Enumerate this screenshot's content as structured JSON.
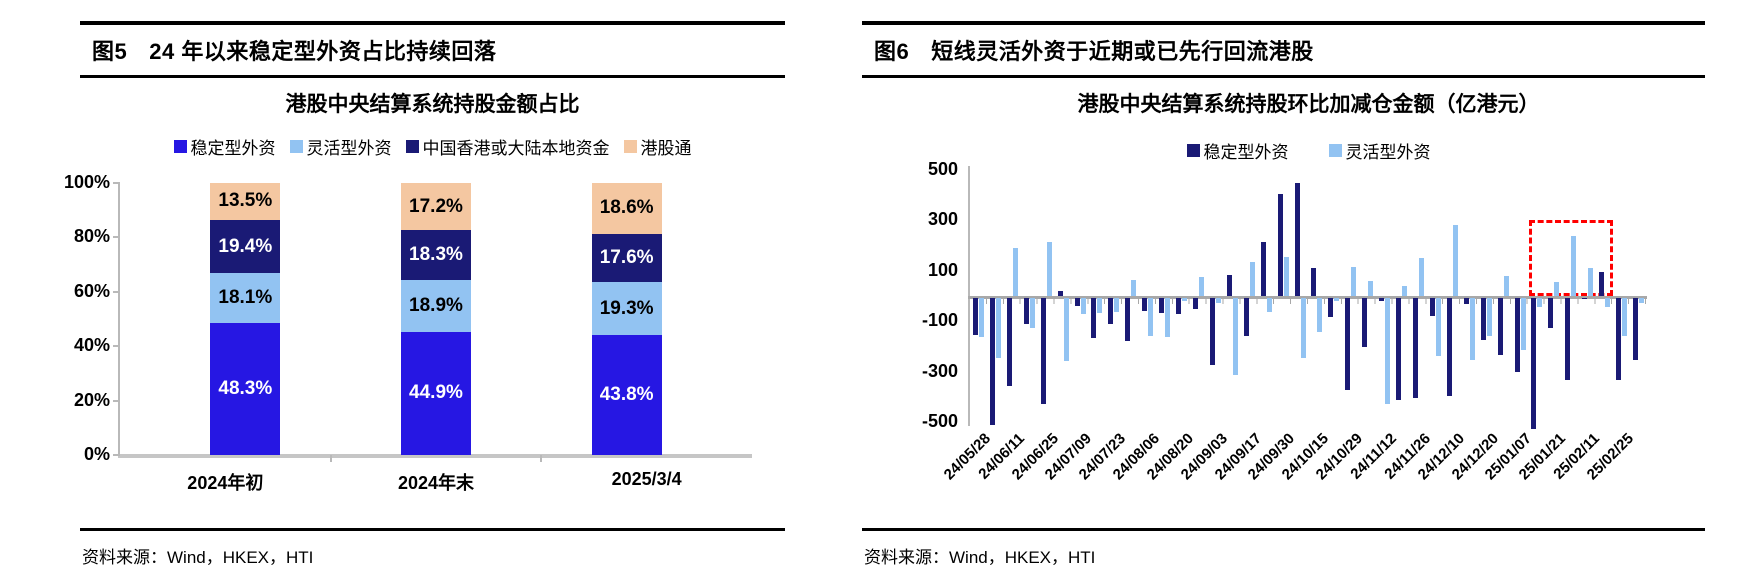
{
  "figure5": {
    "tag": "图5",
    "header_title": "24 年以来稳定型外资占比持续回落",
    "source": "资料来源：Wind，HKEX，HTI",
    "chart_data": {
      "type": "stacked-bar",
      "title": "港股中央结算系统持股金额占比",
      "categories": [
        "2024年初",
        "2024年末",
        "2025/3/4"
      ],
      "y_ticks": [
        "100%",
        "80%",
        "60%",
        "40%",
        "20%",
        "0%"
      ],
      "ylim": [
        0,
        100
      ],
      "unit": "%",
      "legend_position": "top",
      "grid": false,
      "series": [
        {
          "name": "稳定型外资",
          "color": "#2617e3",
          "label_color": "#ffffff",
          "values": [
            48.3,
            44.9,
            43.8
          ]
        },
        {
          "name": "灵活型外资",
          "color": "#92c3f2",
          "label_color": "#000000",
          "values": [
            18.1,
            18.9,
            19.3
          ]
        },
        {
          "name": "中国香港或大陆本地资金",
          "color": "#1a1a75",
          "label_color": "#ffffff",
          "values": [
            19.4,
            18.3,
            17.6
          ]
        },
        {
          "name": "港股通",
          "color": "#f4c7a1",
          "label_color": "#000000",
          "values": [
            13.5,
            17.2,
            18.6
          ]
        }
      ],
      "data_labels": [
        [
          "48.3%",
          "44.9%",
          "43.8%"
        ],
        [
          "18.1%",
          "18.9%",
          "19.3%"
        ],
        [
          "19.4%",
          "18.3%",
          "17.6%"
        ],
        [
          "13.5%",
          "17.2%",
          "18.6%"
        ]
      ]
    }
  },
  "figure6": {
    "tag": "图6",
    "header_title": "短线灵活外资于近期或已先行回流港股",
    "source": "资料来源：Wind，HKEX，HTI",
    "chart_data": {
      "type": "bar",
      "title": "港股中央结算系统持股环比加减仓金额（亿港元）",
      "y_ticks": [
        "500",
        "300",
        "100",
        "-100",
        "-300",
        "-500"
      ],
      "y_tick_values": [
        500,
        300,
        100,
        -100,
        -300,
        -500
      ],
      "ylim": [
        -500,
        500
      ],
      "grid": false,
      "legend_position": "top",
      "x_labels": [
        "24/05/28",
        "24/06/11",
        "24/06/25",
        "24/07/09",
        "24/07/23",
        "24/08/06",
        "24/08/20",
        "24/09/03",
        "24/09/17",
        "24/09/30",
        "24/10/15",
        "24/10/29",
        "24/11/12",
        "24/11/26",
        "24/12/10",
        "24/12/20",
        "25/01/07",
        "25/01/21",
        "25/02/11",
        "25/02/25"
      ],
      "note_labels": "x labels mark every other bar group (biweekly labels on ~weekly data)",
      "series": [
        {
          "name": "稳定型外资",
          "color": "#1a1a75",
          "values": [
            -145,
            -505,
            -350,
            -105,
            -420,
            20,
            -30,
            -160,
            -105,
            -170,
            -50,
            -60,
            -65,
            -45,
            -265,
            85,
            -150,
            215,
            405,
            450,
            110,
            -75,
            -365,
            -195,
            -10,
            -405,
            -395,
            -70,
            -390,
            -25,
            -165,
            -225,
            -295,
            -520,
            -120,
            -325,
            -5,
            95,
            -325,
            -245
          ]
        },
        {
          "name": "灵活型外资",
          "color": "#92c3f2",
          "values": [
            -155,
            -240,
            190,
            -120,
            215,
            -250,
            -65,
            -60,
            -55,
            65,
            -150,
            -155,
            -10,
            75,
            -20,
            -305,
            135,
            -55,
            155,
            -240,
            -135,
            -10,
            115,
            60,
            -420,
            40,
            150,
            -230,
            280,
            -245,
            -150,
            80,
            -205,
            -35,
            55,
            240,
            112,
            -35,
            -150,
            -20
          ]
        }
      ],
      "highlight_box": {
        "color": "#ff0000",
        "value_top": 300,
        "value_bottom": 0,
        "from_group": 33,
        "to_group": 38
      }
    }
  }
}
